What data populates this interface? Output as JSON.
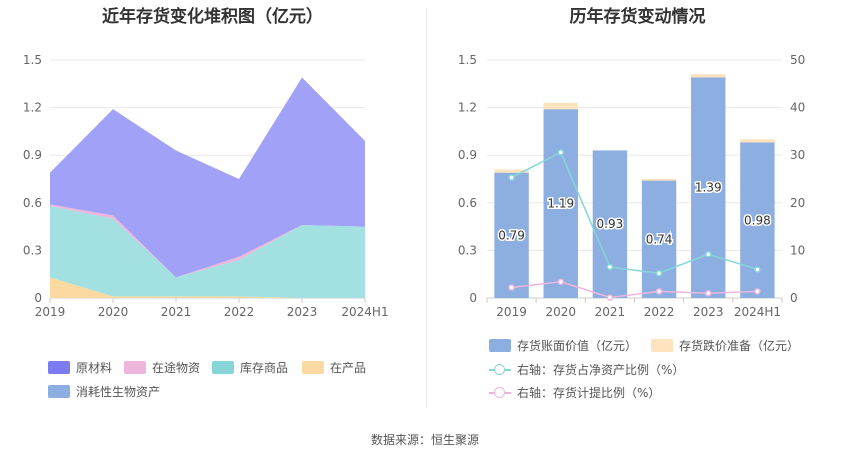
{
  "source_label": "数据来源：恒生聚源",
  "chart_data": [
    {
      "type": "area",
      "stacked": true,
      "title": "近年存货变化堆积图（亿元）",
      "categories": [
        "2019",
        "2020",
        "2021",
        "2022",
        "2023",
        "2024H1"
      ],
      "ylim": [
        0,
        1.5
      ],
      "yticks": [
        "0",
        "0.3",
        "0.6",
        "0.9",
        "1.2",
        "1.5"
      ],
      "grid": true,
      "legend_position": "bottom",
      "series": [
        {
          "name": "在产品",
          "color": "#fcd9a0",
          "values": [
            0.13,
            0.01,
            0.01,
            0.01,
            0.0,
            0.0
          ]
        },
        {
          "name": "库存商品",
          "color": "#a2e0e2",
          "values": [
            0.45,
            0.49,
            0.12,
            0.23,
            0.46,
            0.45
          ]
        },
        {
          "name": "在途物资",
          "color": "#efb6dd",
          "values": [
            0.01,
            0.02,
            0.0,
            0.02,
            0.0,
            0.0
          ]
        },
        {
          "name": "消耗性生物资产",
          "color": "#8caee0",
          "values": [
            0.0,
            0.0,
            0.0,
            0.0,
            0.0,
            0.0
          ]
        },
        {
          "name": "原材料",
          "color": "#a1a1f7",
          "values": [
            0.2,
            0.67,
            0.8,
            0.49,
            0.93,
            0.54
          ]
        }
      ],
      "legend": [
        {
          "name": "原材料",
          "color": "#7c7cf0"
        },
        {
          "name": "在途物资",
          "color": "#efb6dd"
        },
        {
          "name": "库存商品",
          "color": "#86d6d9"
        },
        {
          "name": "在产品",
          "color": "#fcd9a0"
        },
        {
          "name": "消耗性生物资产",
          "color": "#8caee0"
        }
      ]
    },
    {
      "type": "bar",
      "title": "历年存货变动情况",
      "categories": [
        "2019",
        "2020",
        "2021",
        "2022",
        "2023",
        "2024H1"
      ],
      "ylim": [
        0,
        1.5
      ],
      "yticks": [
        "0",
        "0.3",
        "0.6",
        "0.9",
        "1.2",
        "1.5"
      ],
      "y2lim": [
        0,
        50
      ],
      "y2ticks": [
        "0",
        "10",
        "20",
        "30",
        "40",
        "50"
      ],
      "grid": true,
      "legend_position": "bottom",
      "series": [
        {
          "name": "存货账面价值（亿元）",
          "kind": "bar",
          "axis": "left",
          "color": "#8caee0",
          "values": [
            0.79,
            1.19,
            0.93,
            0.74,
            1.39,
            0.98
          ],
          "labels": [
            "0.79",
            "1.19",
            "0.93",
            "0.74",
            "1.39",
            "0.98"
          ]
        },
        {
          "name": "存货跌价准备（亿元）",
          "kind": "bar",
          "axis": "left",
          "stacked": true,
          "color": "#fde3bd",
          "values": [
            0.02,
            0.04,
            0.0,
            0.01,
            0.02,
            0.02
          ]
        },
        {
          "name": "右轴：存货占净资产比例（%）",
          "kind": "line",
          "axis": "right",
          "color": "#86d6d9",
          "values": [
            25.3,
            30.6,
            6.5,
            5.2,
            9.2,
            6.0
          ]
        },
        {
          "name": "右轴：存货计提比例（%）",
          "kind": "line",
          "axis": "right",
          "color": "#efb6dd",
          "values": [
            2.2,
            3.4,
            0.1,
            1.4,
            1.0,
            1.4
          ]
        }
      ]
    }
  ]
}
